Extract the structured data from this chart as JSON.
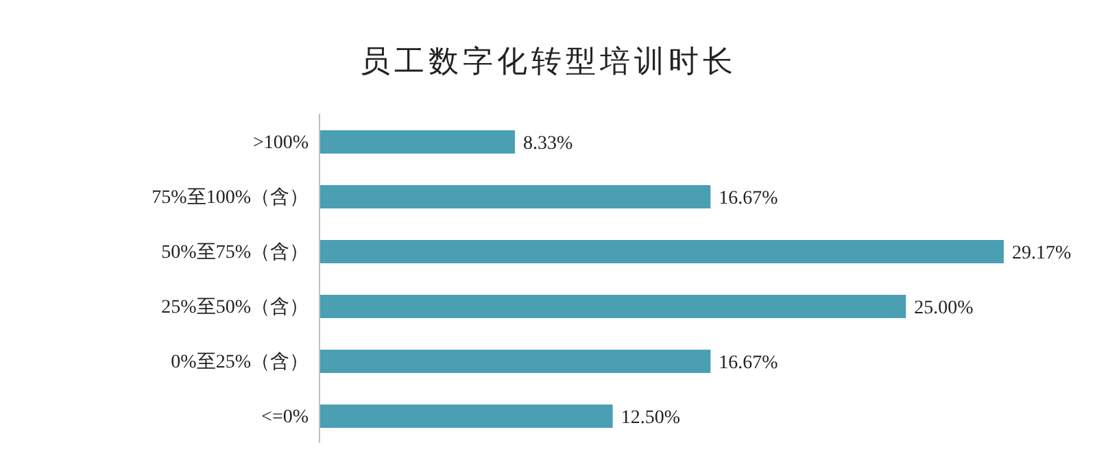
{
  "chart_data": {
    "type": "bar",
    "orientation": "horizontal",
    "title": "员工数字化转型培训时长",
    "categories": [
      ">100%",
      "75%至100%（含）",
      "50%至75%（含）",
      "25%至50%（含）",
      "0%至25%（含）",
      "<=0%"
    ],
    "values": [
      8.33,
      16.67,
      29.17,
      25.0,
      16.67,
      12.5
    ],
    "value_labels": [
      "8.33%",
      "16.67%",
      "29.17%",
      "25.00%",
      "16.67%",
      "12.50%"
    ],
    "color": "#4a9fb3"
  }
}
